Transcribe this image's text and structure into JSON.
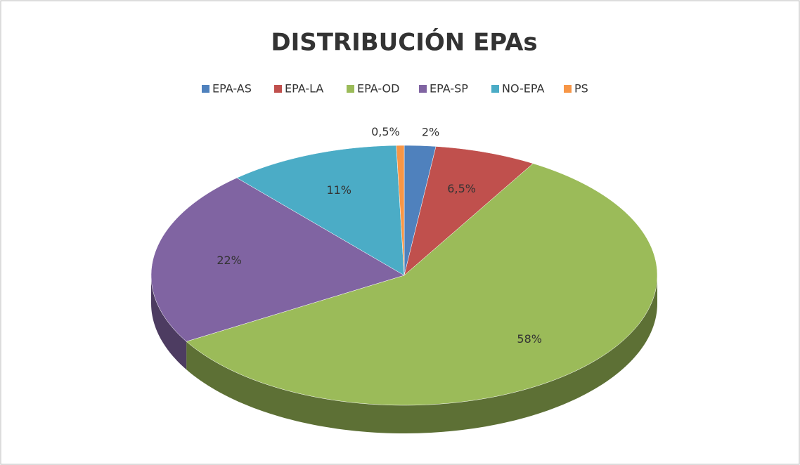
{
  "chart_data": {
    "type": "pie",
    "title": "DISTRIBUCIÓN EPAs",
    "categories": [
      "EPA-AS",
      "EPA-LA",
      "EPA-OD",
      "EPA-SP",
      "NO-EPA",
      "PS"
    ],
    "values": [
      2,
      6.5,
      58,
      22,
      11,
      0.5
    ],
    "value_labels": [
      "2%",
      "6,5%",
      "58%",
      "22%",
      "11%",
      "0,5%"
    ],
    "colors": [
      "#4f81bd",
      "#c0504d",
      "#9bbb59",
      "#8064a2",
      "#4bacc6",
      "#f79646"
    ],
    "legend": "top"
  }
}
